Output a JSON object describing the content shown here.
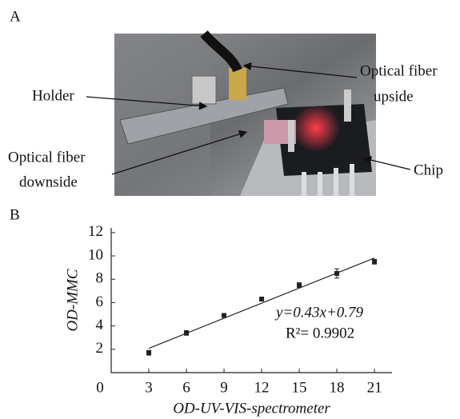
{
  "panel_a": {
    "label": "A",
    "holder": "Holder",
    "fiber_up": [
      "Optical fiber",
      "upside"
    ],
    "fiber_down": [
      "Optical fiber",
      "downside"
    ],
    "chip": "Chip"
  },
  "panel_b_label": "B",
  "chart_data": {
    "type": "scatter",
    "xlabel": "OD-UV-VIS-spectrometer",
    "ylabel": "OD-MMC",
    "x": [
      3,
      6,
      9,
      12,
      15,
      18,
      21
    ],
    "values": [
      1.7,
      3.4,
      4.9,
      6.3,
      7.5,
      8.5,
      9.5
    ],
    "errors": [
      0.2,
      0.2,
      0.15,
      0.15,
      0.2,
      0.4,
      0.2
    ],
    "color": "#222",
    "fit_line": {
      "x": [
        3,
        21
      ],
      "y": [
        2.08,
        9.82
      ]
    },
    "annotations": [
      "y=0.43x+0.79",
      "R²= 0.9902"
    ],
    "xlim": [
      0,
      22.4
    ],
    "xticks": [
      0,
      3,
      6,
      9,
      12,
      15,
      18,
      21
    ],
    "ylim": [
      0,
      12.4
    ],
    "yticks": [
      2,
      4,
      6,
      8,
      10,
      12
    ]
  }
}
